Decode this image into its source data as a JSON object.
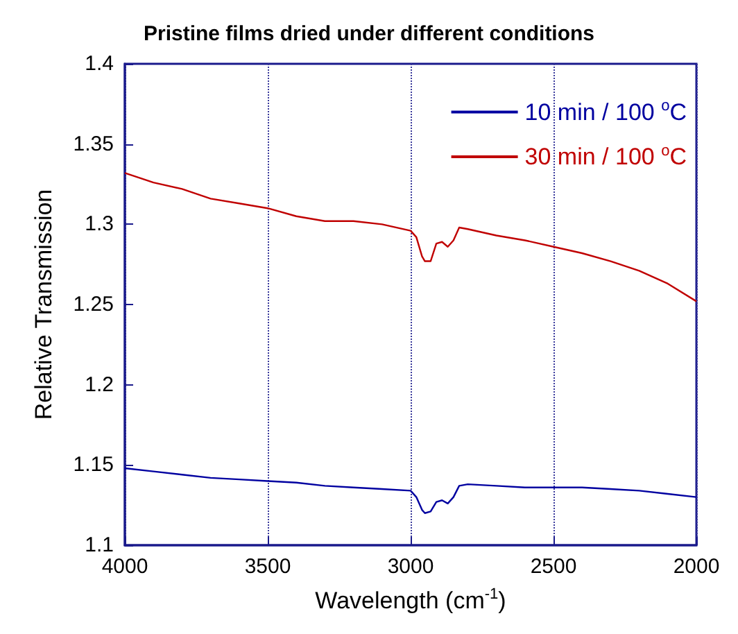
{
  "chart_data": {
    "type": "line",
    "title": "Pristine films dried under different conditions",
    "xlabel": "Wavelength (cm$^{-1}$)",
    "ylabel": "Relative Transmission",
    "xlim": [
      4000,
      2000
    ],
    "xticks": [
      4000,
      3500,
      3000,
      2500,
      2000
    ],
    "ylim": [
      1.1,
      1.4
    ],
    "yticks": [
      1.1,
      1.15,
      1.2,
      1.25,
      1.3,
      1.35,
      1.4
    ],
    "grid": "x",
    "legend": "top right",
    "marker": "none",
    "line_style": "solid",
    "series": [
      {
        "name": "10 min / 100 $^{o}$C",
        "color": "#0000a0",
        "x": [
          4000,
          3900,
          3800,
          3700,
          3600,
          3500,
          3400,
          3300,
          3200,
          3100,
          3000,
          2980,
          2960,
          2950,
          2930,
          2910,
          2890,
          2870,
          2850,
          2830,
          2800,
          2700,
          2600,
          2500,
          2400,
          2300,
          2200,
          2100,
          2000
        ],
        "values": [
          1.148,
          1.146,
          1.144,
          1.142,
          1.141,
          1.14,
          1.139,
          1.137,
          1.136,
          1.135,
          1.134,
          1.13,
          1.122,
          1.12,
          1.121,
          1.127,
          1.128,
          1.126,
          1.13,
          1.137,
          1.138,
          1.137,
          1.136,
          1.136,
          1.136,
          1.135,
          1.134,
          1.132,
          1.13
        ]
      },
      {
        "name": "30 min / 100 $^{o}$C",
        "color": "#c00000",
        "x": [
          4000,
          3900,
          3800,
          3700,
          3600,
          3500,
          3400,
          3300,
          3200,
          3100,
          3000,
          2980,
          2960,
          2950,
          2930,
          2910,
          2890,
          2870,
          2850,
          2830,
          2800,
          2700,
          2600,
          2500,
          2400,
          2300,
          2200,
          2100,
          2000
        ],
        "values": [
          1.332,
          1.326,
          1.322,
          1.316,
          1.313,
          1.31,
          1.305,
          1.302,
          1.302,
          1.3,
          1.296,
          1.292,
          1.28,
          1.277,
          1.277,
          1.288,
          1.289,
          1.286,
          1.29,
          1.298,
          1.297,
          1.293,
          1.29,
          1.286,
          1.282,
          1.277,
          1.271,
          1.263,
          1.252
        ]
      }
    ]
  }
}
